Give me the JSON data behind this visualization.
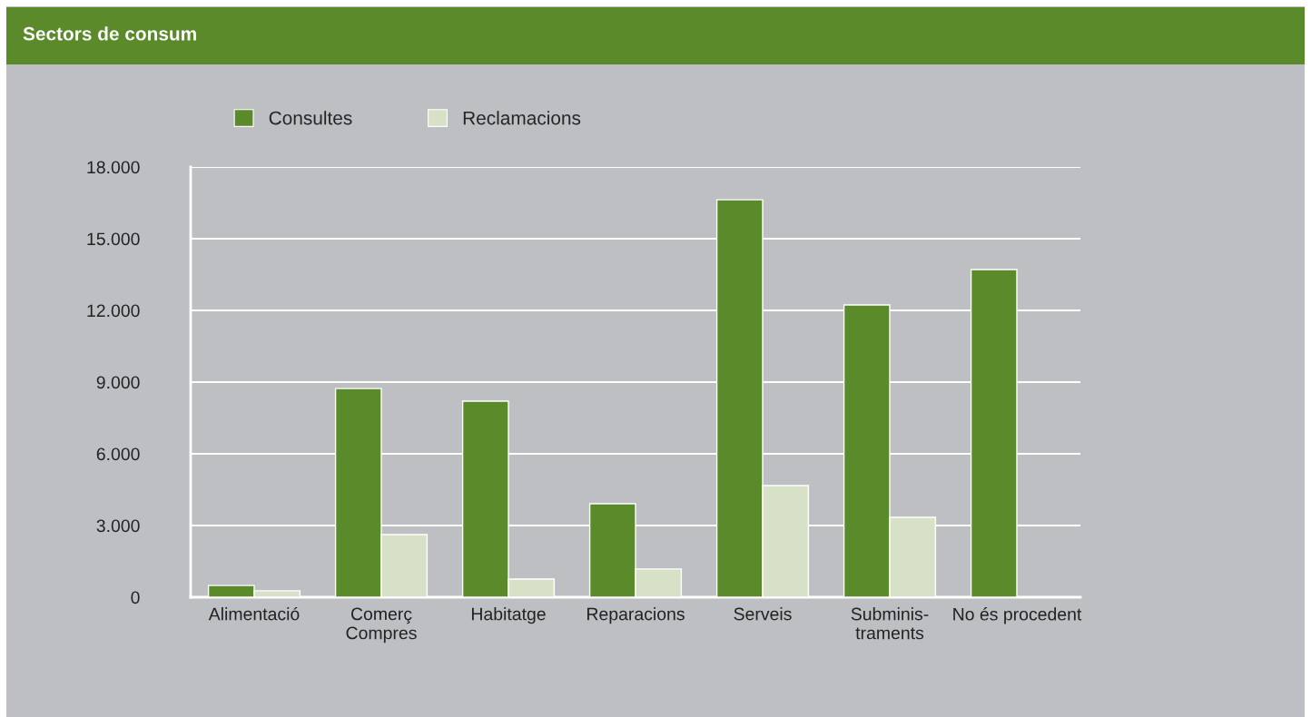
{
  "chart_data": {
    "type": "bar",
    "title": "Sectors de consum",
    "categories": [
      "Alimentació",
      "Comerç\nCompres",
      "Habitatge",
      "Reparacions",
      "Serveis",
      "Subminis-\ntraments",
      "No és procedent"
    ],
    "series": [
      {
        "name": "Consultes",
        "color": "#5b8a2a",
        "values": [
          490,
          8730,
          8200,
          3910,
          16630,
          12230,
          13710
        ]
      },
      {
        "name": "Reclamacions",
        "color": "#d7e1c8",
        "values": [
          270,
          2620,
          760,
          1180,
          4670,
          3340,
          null
        ]
      }
    ],
    "ylim": [
      0,
      18000
    ],
    "yticks": [
      0,
      {
        "value": 3000,
        "label": "3.000"
      },
      {
        "value": 6000,
        "label": "6.000"
      },
      {
        "value": 9000,
        "label": "9.000"
      },
      {
        "value": 12000,
        "label": "12.000"
      },
      {
        "value": 15000,
        "label": "15.000"
      },
      {
        "value": 18000,
        "label": "18.000"
      }
    ],
    "grid": "y",
    "legend": "top left"
  }
}
